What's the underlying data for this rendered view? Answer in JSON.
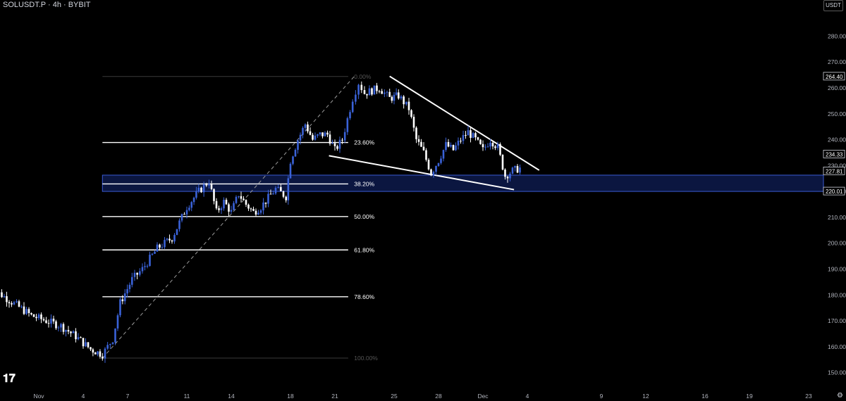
{
  "header": {
    "title": "SOLUSDT.P · 4h · BYBIT",
    "currency": "USDT"
  },
  "icons": {
    "logo": "tradingview-logo-icon",
    "settings": "gear-icon"
  },
  "colors": {
    "background": "#000000",
    "candle_up": "#3a62d8",
    "candle_down": "#ffffff",
    "fib_line": "#ffffff",
    "trendline": "#ffffff",
    "trend_dashed": "#9a9a9a",
    "zone_fill": "#0b1640",
    "zone_border": "#3b5bd4",
    "axis_text": "#b2b5be"
  },
  "chart_data": {
    "type": "candlestick",
    "symbol": "SOLUSDT.P",
    "timeframe": "4h",
    "exchange": "BYBIT",
    "ylim": [
      145,
      288
    ],
    "y_ticks": [
      150,
      160,
      170,
      180,
      190,
      200,
      210,
      220,
      230,
      240,
      250,
      260,
      270,
      280
    ],
    "x_ticks": [
      {
        "label": "Nov",
        "day": 0
      },
      {
        "label": "4",
        "day": 3
      },
      {
        "label": "7",
        "day": 6
      },
      {
        "label": "11",
        "day": 10
      },
      {
        "label": "14",
        "day": 13
      },
      {
        "label": "18",
        "day": 17
      },
      {
        "label": "21",
        "day": 20
      },
      {
        "label": "25",
        "day": 24
      },
      {
        "label": "28",
        "day": 27
      },
      {
        "label": "Dec",
        "day": 30
      },
      {
        "label": "4",
        "day": 33
      },
      {
        "label": "9",
        "day": 38
      },
      {
        "label": "12",
        "day": 41
      },
      {
        "label": "16",
        "day": 45
      },
      {
        "label": "19",
        "day": 48
      },
      {
        "label": "23",
        "day": 52
      }
    ],
    "price_labels": [
      "264.40",
      "234.33",
      "227.81",
      "220.01"
    ],
    "price_label_values": [
      264.4,
      234.33,
      227.81,
      220.01
    ],
    "fib_levels": [
      {
        "label": "0.00%",
        "price": 264.4,
        "dim": true
      },
      {
        "label": "23.60%",
        "price": 238.9,
        "dim": false
      },
      {
        "label": "38.20%",
        "price": 222.9,
        "dim": false
      },
      {
        "label": "50.00%",
        "price": 210.3,
        "dim": false
      },
      {
        "label": "61.80%",
        "price": 197.4,
        "dim": false
      },
      {
        "label": "78.60%",
        "price": 179.3,
        "dim": false
      },
      {
        "label": "100.00%",
        "price": 155.6,
        "dim": true
      }
    ],
    "fib_range_days": [
      4.3,
      20.9
    ],
    "fib_label_day": 21.3,
    "support_zone": {
      "low": 220.01,
      "high": 226.3,
      "from_day": 4.3,
      "to_day": 52.5
    },
    "trendlines": [
      {
        "style": "solid",
        "from": [
          23.7,
          264.5
        ],
        "to": [
          33.8,
          228.2
        ]
      },
      {
        "style": "solid",
        "from": [
          19.6,
          233.8
        ],
        "to": [
          32.1,
          220.7
        ]
      },
      {
        "style": "dashed",
        "from": [
          4.3,
          155.6
        ],
        "to": [
          21.3,
          264.4
        ]
      }
    ],
    "anchors": [
      [
        -3.5,
        183
      ],
      [
        -2.5,
        180
      ],
      [
        -1.5,
        176
      ],
      [
        -0.5,
        172
      ],
      [
        0.5,
        170
      ],
      [
        1.5,
        168
      ],
      [
        2.5,
        164
      ],
      [
        3.5,
        159
      ],
      [
        4.3,
        157
      ],
      [
        5,
        163
      ],
      [
        5.5,
        177
      ],
      [
        6.3,
        186
      ],
      [
        7,
        190
      ],
      [
        8,
        198
      ],
      [
        9,
        202
      ],
      [
        10,
        214
      ],
      [
        10.8,
        220
      ],
      [
        11.5,
        224
      ],
      [
        12,
        212
      ],
      [
        12.5,
        216
      ],
      [
        13,
        212
      ],
      [
        13.5,
        219
      ],
      [
        14,
        215
      ],
      [
        14.5,
        212
      ],
      [
        15,
        214
      ],
      [
        16,
        221
      ],
      [
        16.7,
        218
      ],
      [
        17,
        232
      ],
      [
        17.5,
        240
      ],
      [
        18,
        246
      ],
      [
        18.5,
        240
      ],
      [
        19,
        242
      ],
      [
        19.5,
        242
      ],
      [
        20,
        236
      ],
      [
        20.5,
        240
      ],
      [
        21.2,
        256
      ],
      [
        21.6,
        262
      ],
      [
        22,
        258
      ],
      [
        23,
        260
      ],
      [
        23.7,
        256
      ],
      [
        24.3,
        257
      ],
      [
        25,
        252
      ],
      [
        25.5,
        240
      ],
      [
        26,
        235
      ],
      [
        26.5,
        227
      ],
      [
        27,
        232
      ],
      [
        27.5,
        238
      ],
      [
        28,
        236
      ],
      [
        28.5,
        240
      ],
      [
        29,
        243
      ],
      [
        29.5,
        240
      ],
      [
        30,
        236
      ],
      [
        30.5,
        240
      ],
      [
        31,
        237
      ],
      [
        31.5,
        226
      ],
      [
        32,
        228
      ],
      [
        32.5,
        229
      ]
    ]
  }
}
